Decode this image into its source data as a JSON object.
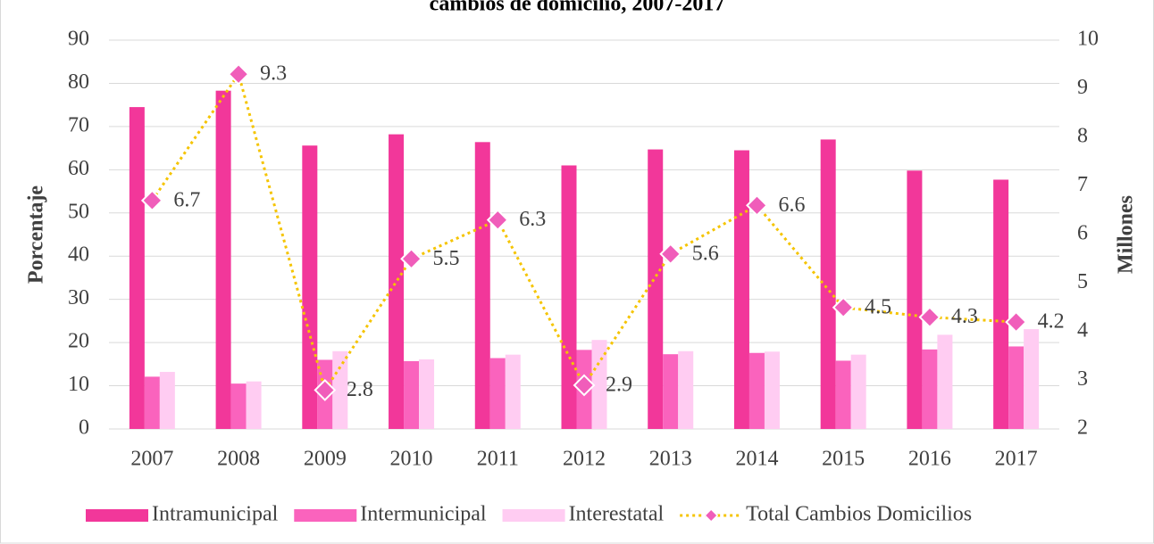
{
  "chart_data": {
    "type": "bar_line",
    "title": "cambios de domicilio, 2007-2017",
    "y_label": "Porcentaje",
    "y2_label": "Millones",
    "categories": [
      "2007",
      "2008",
      "2009",
      "2010",
      "2011",
      "2012",
      "2013",
      "2014",
      "2015",
      "2016",
      "2017"
    ],
    "series": [
      {
        "name": "Intramunicipal",
        "color": "#f2379a",
        "type": "bar",
        "values": [
          74.5,
          78.3,
          65.6,
          68.2,
          66.4,
          61.0,
          64.7,
          64.5,
          67.0,
          59.8,
          57.7
        ]
      },
      {
        "name": "Intermunicipal",
        "color": "#fa63bd",
        "type": "bar",
        "values": [
          12.1,
          10.5,
          16.0,
          15.7,
          16.4,
          18.3,
          17.3,
          17.6,
          15.8,
          18.4,
          19.1
        ]
      },
      {
        "name": "Interestatal",
        "color": "#ffccf2",
        "type": "bar",
        "values": [
          13.2,
          11.0,
          18.0,
          16.1,
          17.2,
          20.6,
          18.0,
          17.9,
          17.2,
          21.8,
          23.1
        ]
      },
      {
        "name": "Total Cambios Domicilios",
        "color": "#f5c400",
        "marker_color": "#f05dba",
        "type": "line",
        "axis": "y2",
        "values": [
          6.7,
          9.3,
          2.8,
          5.5,
          6.3,
          2.9,
          5.6,
          6.6,
          4.5,
          4.3,
          4.2
        ]
      }
    ],
    "ylim": [
      0,
      90
    ],
    "yticks": [
      0,
      10,
      20,
      30,
      40,
      50,
      60,
      70,
      80,
      90
    ],
    "y2lim": [
      2,
      10
    ],
    "y2ticks": [
      2,
      3,
      4,
      5,
      6,
      7,
      8,
      9,
      10
    ],
    "grid": true,
    "legend": "bottom"
  }
}
